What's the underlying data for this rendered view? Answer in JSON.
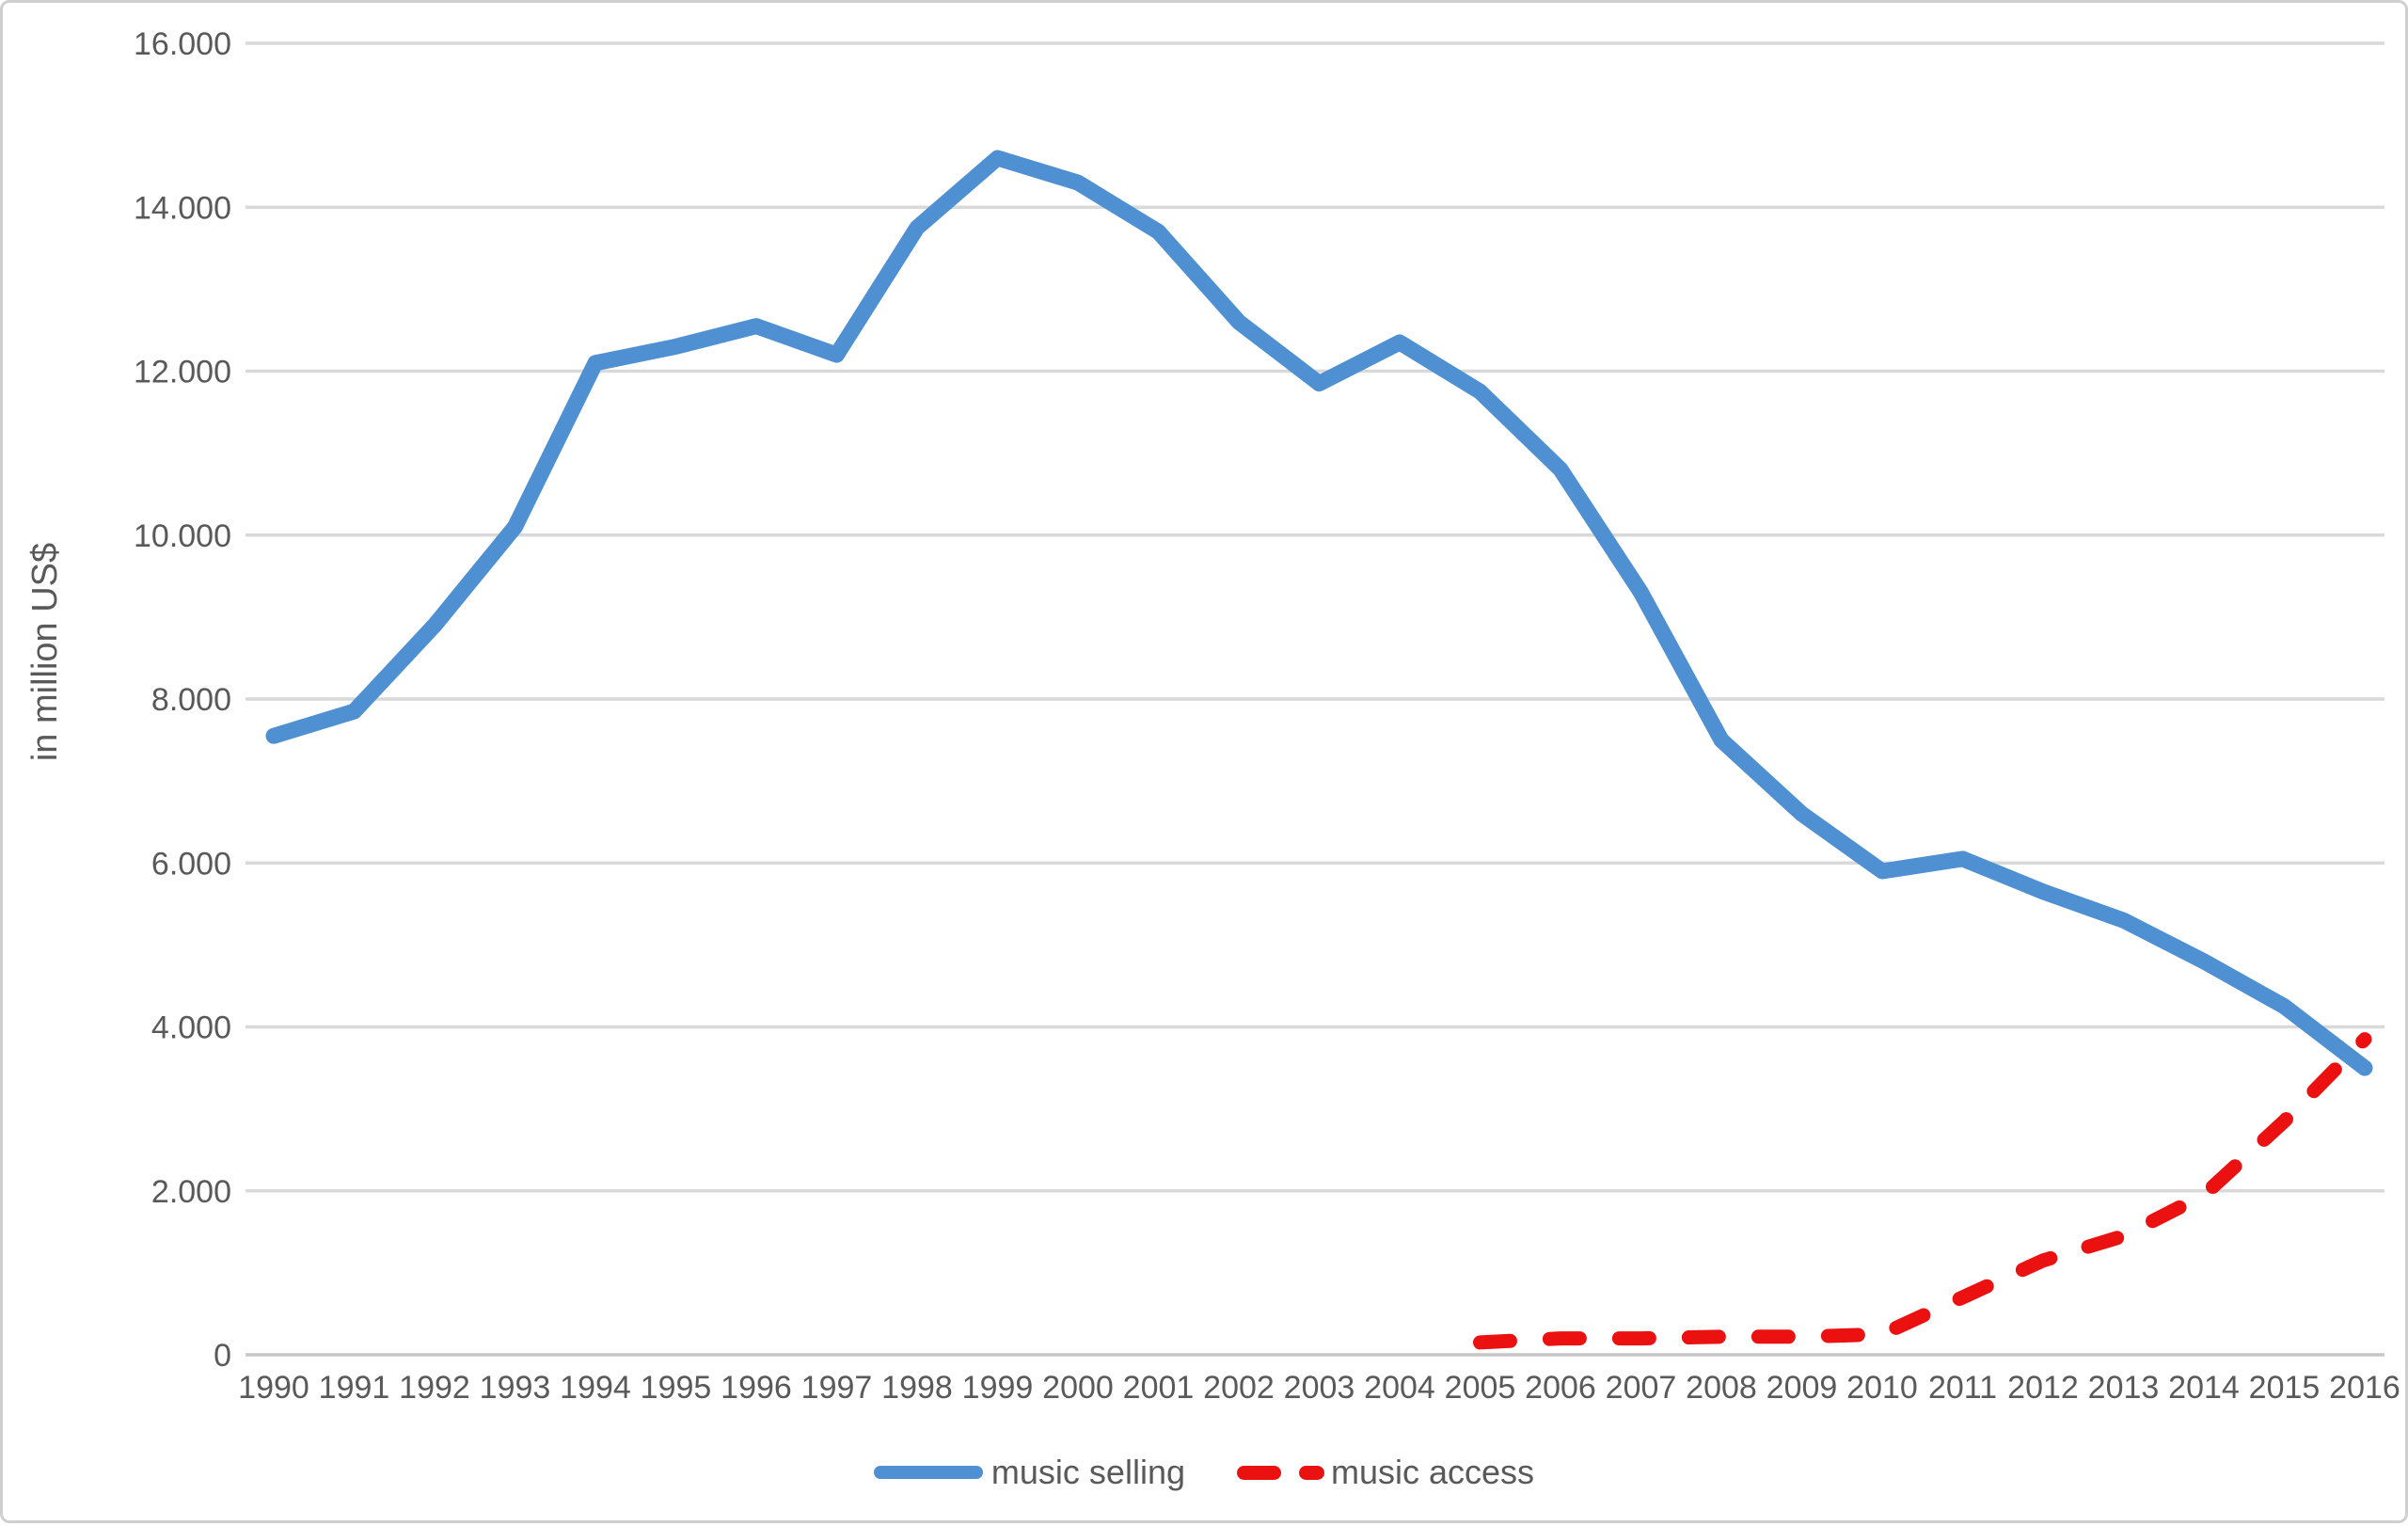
{
  "figure": {
    "background": "#FFFFFF",
    "border_color": "#CFCFCF"
  },
  "chart_data": {
    "type": "line",
    "title": "",
    "xlabel": "",
    "ylabel": "in million US$",
    "ylim": [
      0,
      16000
    ],
    "grid": "horizontal",
    "legend_position": "bottom-center",
    "text_color": "#595959",
    "gridline_color": "#D9D9D9",
    "axisline_color": "#C6C6C6",
    "x_categories": [
      "1990",
      "1991",
      "1992",
      "1993",
      "1994",
      "1995",
      "1996",
      "1997",
      "1998",
      "1999",
      "2000",
      "2001",
      "2002",
      "2003",
      "2004",
      "2005",
      "2006",
      "2007",
      "2008",
      "2009",
      "2010",
      "2011",
      "2012",
      "2013",
      "2014",
      "2015",
      "2016"
    ],
    "y_ticks": {
      "values": [
        16000,
        14000,
        12000,
        10000,
        8000,
        6000,
        4000,
        2000,
        0
      ],
      "labels": [
        "16.000",
        "14.000",
        "12.000",
        "10.000",
        "8.000",
        "6.000",
        "4.000",
        "2.000",
        "0"
      ]
    },
    "series": [
      {
        "name": "music selling",
        "type": "line",
        "style": "solid",
        "color": "#4E90D2",
        "values": [
          7550,
          7850,
          8900,
          10100,
          12100,
          12300,
          12550,
          12200,
          13750,
          14600,
          14300,
          13700,
          12600,
          11850,
          12350,
          11750,
          10800,
          9300,
          7500,
          6600,
          5900,
          6050,
          5650,
          5300,
          4800,
          4250,
          3500
        ]
      },
      {
        "name": "music access",
        "type": "line",
        "style": "dashed",
        "color": "#EC1111",
        "values": [
          null,
          null,
          null,
          null,
          null,
          null,
          null,
          null,
          null,
          null,
          null,
          null,
          null,
          null,
          null,
          150,
          200,
          200,
          220,
          220,
          250,
          700,
          1150,
          1450,
          1950,
          2850,
          3850
        ]
      }
    ]
  }
}
